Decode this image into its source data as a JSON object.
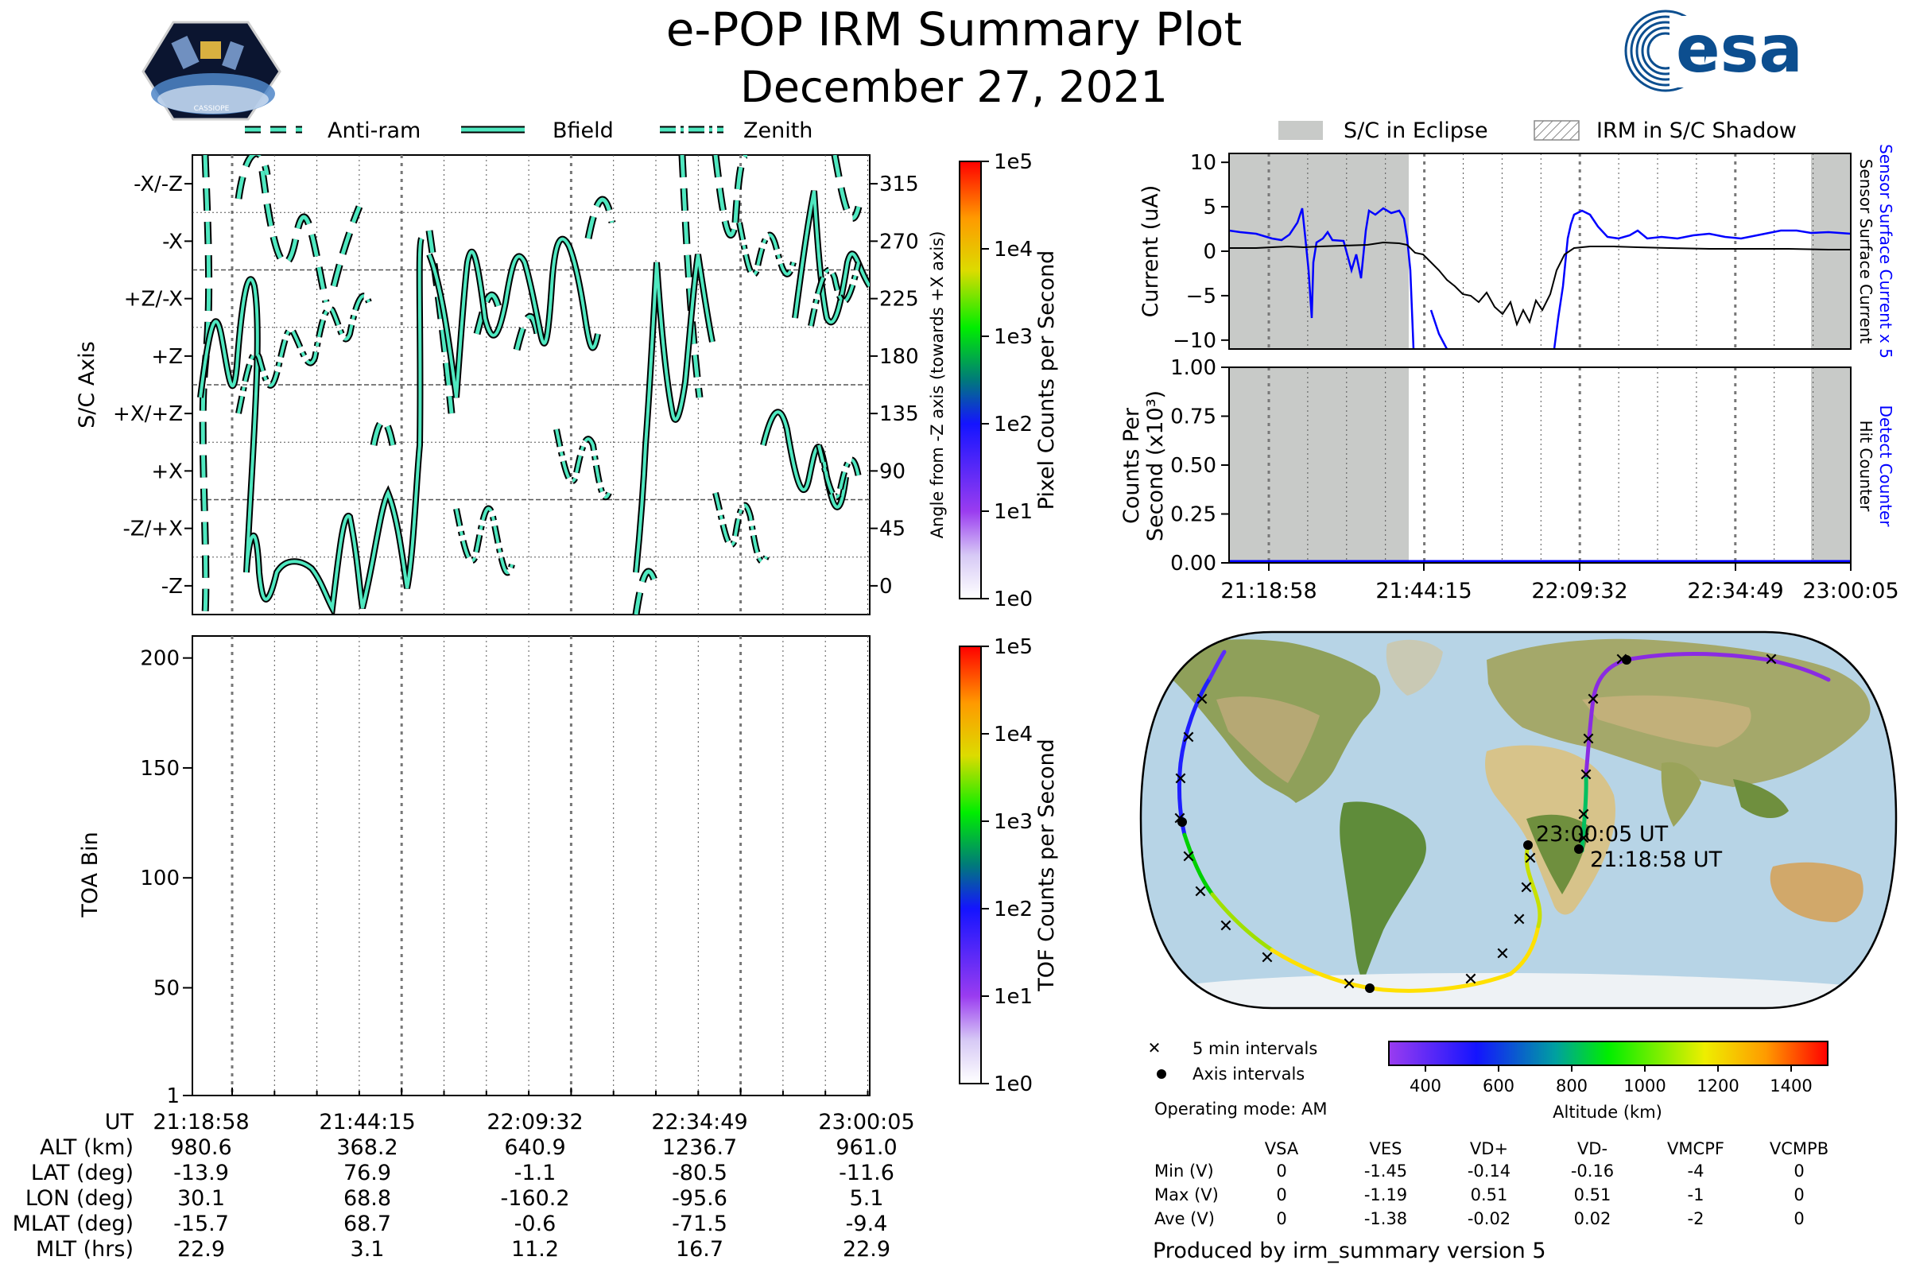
{
  "header": {
    "title": "e-POP IRM Summary Plot",
    "date": "December 27, 2021",
    "cassiope_logo_text": "CASSIOPE",
    "esa_logo_text": "esa"
  },
  "axis_panel": {
    "legend": [
      "Anti-ram",
      "Bfield",
      "Zenith"
    ],
    "ylabel": "S/C Axis",
    "ytick_labels": [
      "-X/-Z",
      "-X",
      "+Z/-X",
      "+Z",
      "+X/+Z",
      "+X",
      "-Z/+X",
      "-Z"
    ],
    "right_label": "Angle from -Z axis (towards +X axis)",
    "right_ticks": [
      "315",
      "270",
      "225",
      "180",
      "135",
      "90",
      "45",
      "0"
    ],
    "colorbar_label": "Pixel Counts per Second",
    "colorbar_ticks": [
      "1e5",
      "1e4",
      "1e3",
      "1e2",
      "1e1",
      "1e0"
    ]
  },
  "toa_panel": {
    "ylabel": "TOA Bin",
    "ytick_labels": [
      "200",
      "150",
      "100",
      "50",
      "1"
    ],
    "colorbar_label": "TOF Counts per Second",
    "colorbar_ticks": [
      "1e5",
      "1e4",
      "1e3",
      "1e2",
      "1e1",
      "1e0"
    ]
  },
  "orbit_table": {
    "row_labels": [
      "UT",
      "ALT (km)",
      "LAT (deg)",
      "LON (deg)",
      "MLAT (deg)",
      "MLT (hrs)"
    ],
    "rows": [
      [
        "21:18:58",
        "21:44:15",
        "22:09:32",
        "22:34:49",
        "23:00:05"
      ],
      [
        "980.6",
        "368.2",
        "640.9",
        "1236.7",
        "961.0"
      ],
      [
        "-13.9",
        "76.9",
        "-1.1",
        "-80.5",
        "-11.6"
      ],
      [
        "30.1",
        "68.8",
        "-160.2",
        "-95.6",
        "5.1"
      ],
      [
        "-15.7",
        "68.7",
        "-0.6",
        "-71.5",
        "-9.4"
      ],
      [
        "22.9",
        "3.1",
        "11.2",
        "16.7",
        "22.9"
      ]
    ]
  },
  "right_legend": {
    "eclipse": "S/C in Eclipse",
    "shadow": "IRM in S/C Shadow"
  },
  "current_panel": {
    "ylabel": "Current (uA)",
    "ytick_labels": [
      "10",
      "5",
      "0",
      "−5",
      "−10"
    ],
    "right_label_blue": "Sensor Surface Current x 5",
    "right_label_black": "Sensor Surface Current"
  },
  "counts_panel": {
    "ylabel_line1": "Counts Per",
    "ylabel_line2": "Second (x10³)",
    "ytick_labels": [
      "1.00",
      "0.75",
      "0.50",
      "0.25",
      "0.00"
    ],
    "right_label_blue": "Detect Counter",
    "right_label_black": "Hit Counter",
    "xtick_labels": [
      "21:18:58",
      "21:44:15",
      "22:09:32",
      "22:34:49",
      "23:00:05"
    ]
  },
  "map": {
    "start_label": "21:18:58 UT",
    "end_label": "23:00:05 UT",
    "legend_cross": "5 min intervals",
    "legend_dot": "Axis intervals",
    "operating_mode": "Operating mode: AM",
    "altitude_ticks": [
      "400",
      "600",
      "800",
      "1000",
      "1200",
      "1400"
    ],
    "altitude_label": "Altitude (km)"
  },
  "voltage_table": {
    "columns": [
      "VSA",
      "VES",
      "VD+",
      "VD-",
      "VMCPF",
      "VCMPB"
    ],
    "rows": [
      {
        "label": "Min (V)",
        "values": [
          "0",
          "-1.45",
          "-0.14",
          "-0.16",
          "-4",
          "0"
        ]
      },
      {
        "label": "Max (V)",
        "values": [
          "0",
          "-1.19",
          "0.51",
          "0.51",
          "-1",
          "0"
        ]
      },
      {
        "label": "Ave (V)",
        "values": [
          "0",
          "-1.38",
          "-0.02",
          "0.02",
          "-2",
          "0"
        ]
      }
    ]
  },
  "footer": "Produced by irm_summary version 5",
  "colors": {
    "cyan": "#4fe8c0",
    "eclipse_gray": "#c8cac8",
    "blue_trace": "#0000ff",
    "ocean": "#b7d4e6"
  },
  "chart_data": [
    {
      "type": "line",
      "title": "",
      "xlabel": "UT",
      "ylabel": "S/C Axis",
      "ylim": [
        -22.5,
        337.5
      ],
      "series": [
        {
          "name": "Bfield",
          "x": [
            "21:18:58",
            "21:24",
            "21:29",
            "21:34",
            "21:39",
            "21:44:15",
            "21:49",
            "21:54",
            "21:59",
            "22:04",
            "22:09:32",
            "22:14",
            "22:19",
            "22:24",
            "22:29",
            "22:34:49",
            "22:40",
            "22:45",
            "22:50",
            "22:55",
            "23:00:05"
          ],
          "values": [
            140,
            200,
            330,
            10,
            0,
            10,
            260,
            170,
            150,
            240,
            330,
            40,
            120,
            20,
            30,
            140,
            280,
            200,
            150,
            190,
            170
          ]
        }
      ]
    },
    {
      "type": "line",
      "title": "",
      "ylabel": "Current (uA)",
      "ylim": [
        -11,
        11
      ],
      "series": [
        {
          "name": "Sensor Surface Current x 5",
          "x": [
            "21:18:58",
            "21:25",
            "21:30",
            "21:35",
            "21:40",
            "21:44:15",
            "21:48",
            "21:52",
            "21:55",
            "22:00",
            "22:05",
            "22:09:32",
            "22:12",
            "22:15",
            "22:20",
            "22:25",
            "22:30",
            "22:34:49",
            "22:40",
            "22:45",
            "22:50",
            "22:55",
            "23:00:05"
          ],
          "values": [
            2,
            1.5,
            3,
            -8,
            2,
            4,
            4.5,
            3,
            -10,
            -10,
            -10,
            -10,
            -10,
            -10,
            4.5,
            2,
            1.5,
            1.5,
            2,
            1.5,
            2,
            1.5,
            2
          ]
        },
        {
          "name": "Sensor Surface Current",
          "x": [
            "21:18:58",
            "21:25",
            "21:30",
            "21:35",
            "21:40",
            "21:44:15",
            "21:48",
            "21:52",
            "21:55",
            "22:00",
            "22:05",
            "22:09:32",
            "22:12",
            "22:15",
            "22:20",
            "22:25",
            "22:30",
            "22:34:49",
            "22:40",
            "22:45",
            "22:50",
            "22:55",
            "23:00:05"
          ],
          "values": [
            0.5,
            0.3,
            0.5,
            0.4,
            0.5,
            0.8,
            0.9,
            0.5,
            -1,
            -4,
            -6,
            -8,
            -5,
            -7,
            0,
            0.5,
            0.3,
            0.2,
            0.3,
            0.2,
            0.2,
            0.1,
            0.2
          ]
        }
      ]
    },
    {
      "type": "line",
      "title": "",
      "ylabel": "Counts Per Second (x10³)",
      "ylim": [
        0,
        1
      ],
      "series": [
        {
          "name": "Detect Counter",
          "x": [
            "21:18:58",
            "23:00:05"
          ],
          "values": [
            0,
            0
          ]
        }
      ]
    }
  ]
}
